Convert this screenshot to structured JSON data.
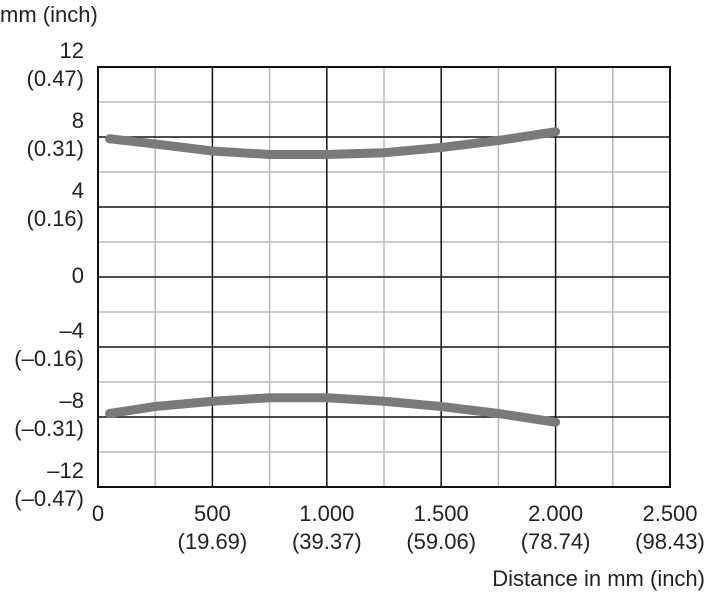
{
  "chart_data": {
    "type": "line",
    "y_axis_label": "mm (inch)",
    "x_axis_label": "Distance in mm (inch)",
    "xlim": [
      0,
      2500
    ],
    "xticks": [
      {
        "value": 0,
        "label": "0"
      },
      {
        "value": 500,
        "label": "500",
        "inch_label": "(19.69)"
      },
      {
        "value": 1000,
        "label": "1.000",
        "inch_label": "(39.37)"
      },
      {
        "value": 1500,
        "label": "1.500",
        "inch_label": "(59.06)"
      },
      {
        "value": 2000,
        "label": "2.000",
        "inch_label": "(78.74)"
      },
      {
        "value": 2500,
        "label": "2.500",
        "inch_label": "(98.43)"
      }
    ],
    "ylim": [
      -12,
      12
    ],
    "yticks": [
      {
        "value": 12,
        "label": "12",
        "inch_label": "(0.47)"
      },
      {
        "value": 8,
        "label": "8",
        "inch_label": "(0.31)"
      },
      {
        "value": 4,
        "label": "4",
        "inch_label": "(0.16)"
      },
      {
        "value": 0,
        "label": "0"
      },
      {
        "value": -4,
        "label": "–4",
        "inch_label": "(–0.16)"
      },
      {
        "value": -8,
        "label": "–8",
        "inch_label": "(–0.31)"
      },
      {
        "value": -12,
        "label": "–12",
        "inch_label": "(–0.47)"
      }
    ],
    "grid": true,
    "x": [
      50,
      250,
      500,
      750,
      1000,
      1250,
      1500,
      1750,
      2000
    ],
    "series": [
      {
        "color": "#7a7a7a",
        "values": [
          7.9,
          7.6,
          7.2,
          7.0,
          7.0,
          7.1,
          7.4,
          7.8,
          8.3
        ]
      },
      {
        "color": "#7a7a7a",
        "values": [
          -7.8,
          -7.4,
          -7.1,
          -6.9,
          -6.9,
          -7.1,
          -7.4,
          -7.8,
          -8.3
        ]
      }
    ]
  }
}
